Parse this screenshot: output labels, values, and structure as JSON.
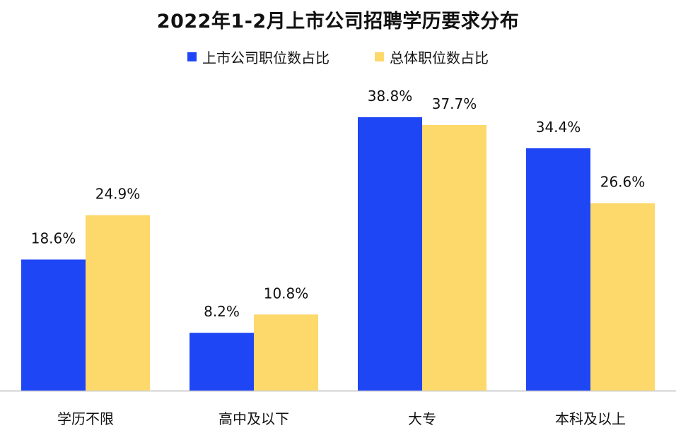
{
  "colors": {
    "series1": "#1f46f5",
    "series2": "#fdd86b",
    "axis": "#d0d0d0"
  },
  "chart_data": {
    "type": "bar",
    "title": "2022年1-2月上市公司招聘学历要求分布",
    "categories": [
      "学历不限",
      "高中及以下",
      "大专",
      "本科及以上"
    ],
    "series": [
      {
        "name": "上市公司职位数占比",
        "values": [
          18.6,
          8.2,
          38.8,
          34.4
        ],
        "labels": [
          "18.6%",
          "8.2%",
          "38.8%",
          "34.4%"
        ]
      },
      {
        "name": "总体职位数占比",
        "values": [
          24.9,
          10.8,
          37.7,
          26.6
        ],
        "labels": [
          "24.9%",
          "10.8%",
          "37.7%",
          "26.6%"
        ]
      }
    ],
    "ylim": [
      0,
      40
    ],
    "grid": false,
    "legend": "top-center"
  }
}
